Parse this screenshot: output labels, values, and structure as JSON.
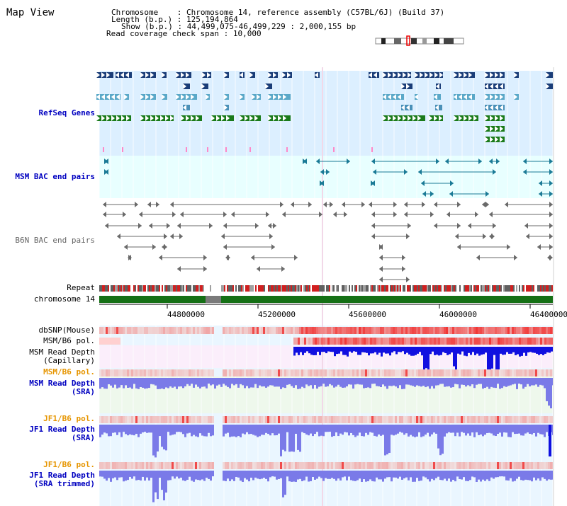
{
  "title": "Map View",
  "header": {
    "chromosome_label": "Chromosome",
    "chromosome_value": "Chromosome 14, reference assembly (C57BL/6J) (Build 37)",
    "length_label": "Length (b.p.)",
    "length_value": "125,194,864",
    "show_label": "Show (b.p.)",
    "show_value": "44,499,075-46,499,229 : 2,000,155 bp",
    "coverage_label": "Read coverage check span",
    "coverage_value": "10,000"
  },
  "tracks": {
    "refseq": "RefSeq Genes",
    "msm_bac": "MSM BAC end pairs",
    "b6n_bac": "B6N BAC end pairs",
    "repeat": "Repeat",
    "chromosome": "chromosome 14",
    "dbsnp": "dbSNP(Mouse)",
    "msm_b6_pol_1": "MSM/B6 pol.",
    "msm_depth_cap_1": "MSM Read Depth",
    "msm_depth_cap_2": "(Capillary)",
    "msm_b6_pol_2": "MSM/B6 pol.",
    "msm_depth_sra_1": "MSM Read Depth",
    "msm_depth_sra_2": "(SRA)",
    "jf1_b6_pol_1": "JF1/B6 pol.",
    "jf1_depth_sra_1": "JF1 Read Depth",
    "jf1_depth_sra_2": "(SRA)",
    "jf1_b6_pol_2": "JF1/B6 pol.",
    "jf1_depth_trim_1": "JF1 Read Depth",
    "jf1_depth_trim_2": "(SRA trimmed)"
  },
  "axis": {
    "ticks": [
      "44800000",
      "45200000",
      "45600000",
      "46000000",
      "46400000"
    ]
  },
  "colors": {
    "refseq_bg": "#dcefff",
    "bac_bg": "#e8ffff",
    "gene_dark": "#1a3d78",
    "gene_mid": "#4a90b8",
    "gene_light": "#5aa8c8",
    "gene_green": "#1a7a1a",
    "chrom_green": "#157015",
    "depth_blue": "#1010e0",
    "depth_light": "#7a7ae8",
    "pol_red": "#e03030",
    "label_blue": "#0000c0",
    "label_orange": "#e69500"
  }
}
